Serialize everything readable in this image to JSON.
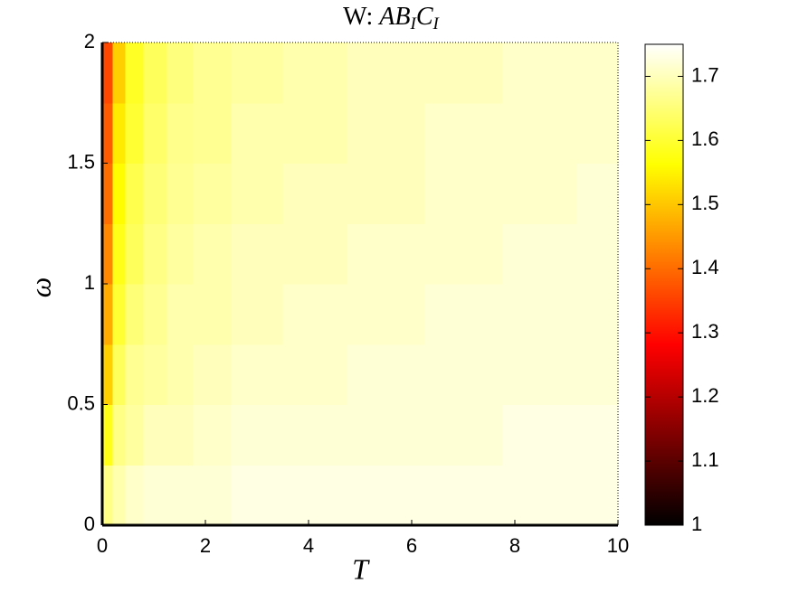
{
  "chart_data": {
    "type": "heatmap",
    "title": {
      "prefix": "W:",
      "terms": [
        {
          "base": "AB",
          "sub": "I"
        },
        {
          "base": "C",
          "sub": "I"
        }
      ]
    },
    "xlabel": "T",
    "ylabel": "ω",
    "x": [
      0.1,
      0.3,
      0.6,
      1,
      1.5,
      2,
      3,
      4,
      5.5,
      7,
      8.5,
      9.9
    ],
    "y": [
      0.125,
      0.375,
      0.625,
      0.875,
      1.125,
      1.375,
      1.625,
      1.875
    ],
    "z": [
      [
        1.66,
        1.69,
        1.71,
        1.72,
        1.72,
        1.72,
        1.73,
        1.73,
        1.73,
        1.73,
        1.73,
        1.73
      ],
      [
        1.58,
        1.66,
        1.68,
        1.7,
        1.7,
        1.71,
        1.72,
        1.72,
        1.72,
        1.72,
        1.73,
        1.73
      ],
      [
        1.51,
        1.63,
        1.67,
        1.68,
        1.69,
        1.7,
        1.71,
        1.71,
        1.72,
        1.72,
        1.72,
        1.72
      ],
      [
        1.47,
        1.6,
        1.65,
        1.67,
        1.69,
        1.69,
        1.7,
        1.71,
        1.71,
        1.72,
        1.72,
        1.72
      ],
      [
        1.43,
        1.58,
        1.63,
        1.66,
        1.68,
        1.69,
        1.7,
        1.7,
        1.71,
        1.71,
        1.72,
        1.72
      ],
      [
        1.4,
        1.56,
        1.62,
        1.65,
        1.67,
        1.68,
        1.69,
        1.7,
        1.7,
        1.71,
        1.71,
        1.72
      ],
      [
        1.38,
        1.54,
        1.6,
        1.64,
        1.665,
        1.67,
        1.69,
        1.69,
        1.7,
        1.71,
        1.71,
        1.71
      ],
      [
        1.36,
        1.51,
        1.59,
        1.63,
        1.655,
        1.67,
        1.68,
        1.69,
        1.7,
        1.7,
        1.71,
        1.71
      ]
    ],
    "xlim": [
      0,
      10
    ],
    "xticks": [
      0,
      2,
      4,
      6,
      8,
      10
    ],
    "ylim": [
      0,
      2
    ],
    "yticks": [
      0,
      0.5,
      1,
      1.5,
      2
    ],
    "colormap": "hot",
    "clim": [
      1,
      1.75
    ],
    "cticks": [
      1,
      1.1,
      1.2,
      1.3,
      1.4,
      1.5,
      1.6,
      1.7
    ]
  }
}
